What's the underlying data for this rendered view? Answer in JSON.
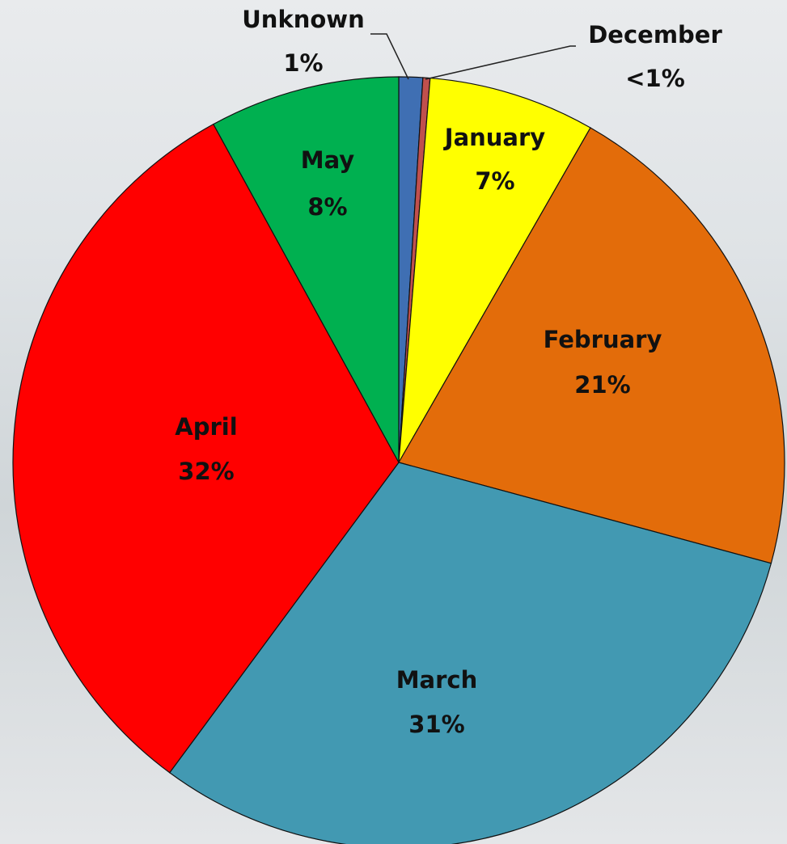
{
  "chart_data": {
    "type": "pie",
    "categories": [
      "Unknown",
      "December",
      "January",
      "February",
      "March",
      "April",
      "May"
    ],
    "values": [
      1,
      0.3,
      7,
      21,
      31,
      32,
      8
    ],
    "value_labels": [
      "1%",
      "<1%",
      "7%",
      "21%",
      "31%",
      "32%",
      "8%"
    ],
    "colors": [
      "#3f6fb3",
      "#c0504d",
      "#ffff00",
      "#e36c0a",
      "#4299b2",
      "#ff0000",
      "#00b050"
    ]
  }
}
